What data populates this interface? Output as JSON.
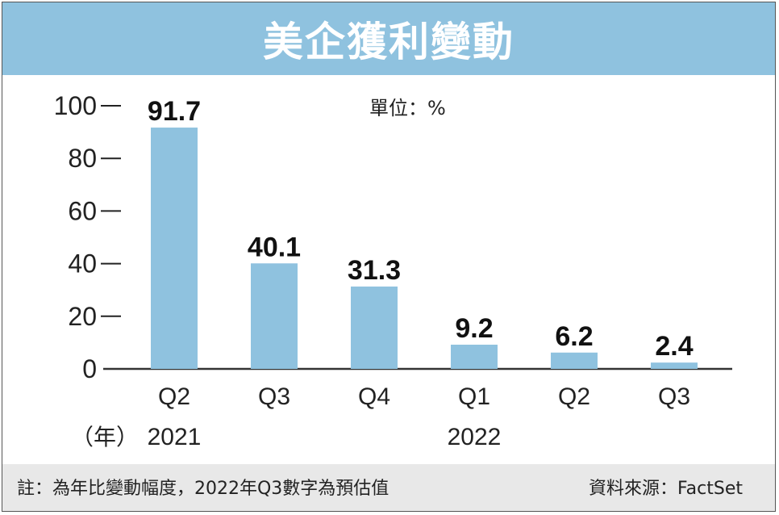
{
  "title": "美企獲利變動",
  "unit_label": "單位：%",
  "note": "註：為年比變動幅度，2022年Q3數字為預估值",
  "source": "資料來源：FactSet",
  "bar_color": "#8fc2df",
  "title_bg": "#8fc2df",
  "chart_data": {
    "type": "bar",
    "categories": [
      "Q2",
      "Q3",
      "Q4",
      "Q1",
      "Q2",
      "Q3"
    ],
    "values": [
      91.7,
      40.1,
      31.3,
      9.2,
      6.2,
      2.4
    ],
    "value_labels": [
      "91.7",
      "40.1",
      "31.3",
      "9.2",
      "6.2",
      "2.4"
    ],
    "year_labels": [
      "2021",
      "",
      "",
      "2022",
      "",
      ""
    ],
    "xlabel": "（年）",
    "ylabel": "",
    "ylim": [
      0,
      100
    ],
    "yticks": [
      0,
      20,
      40,
      60,
      80,
      100
    ],
    "grid": false,
    "legend": "none"
  }
}
